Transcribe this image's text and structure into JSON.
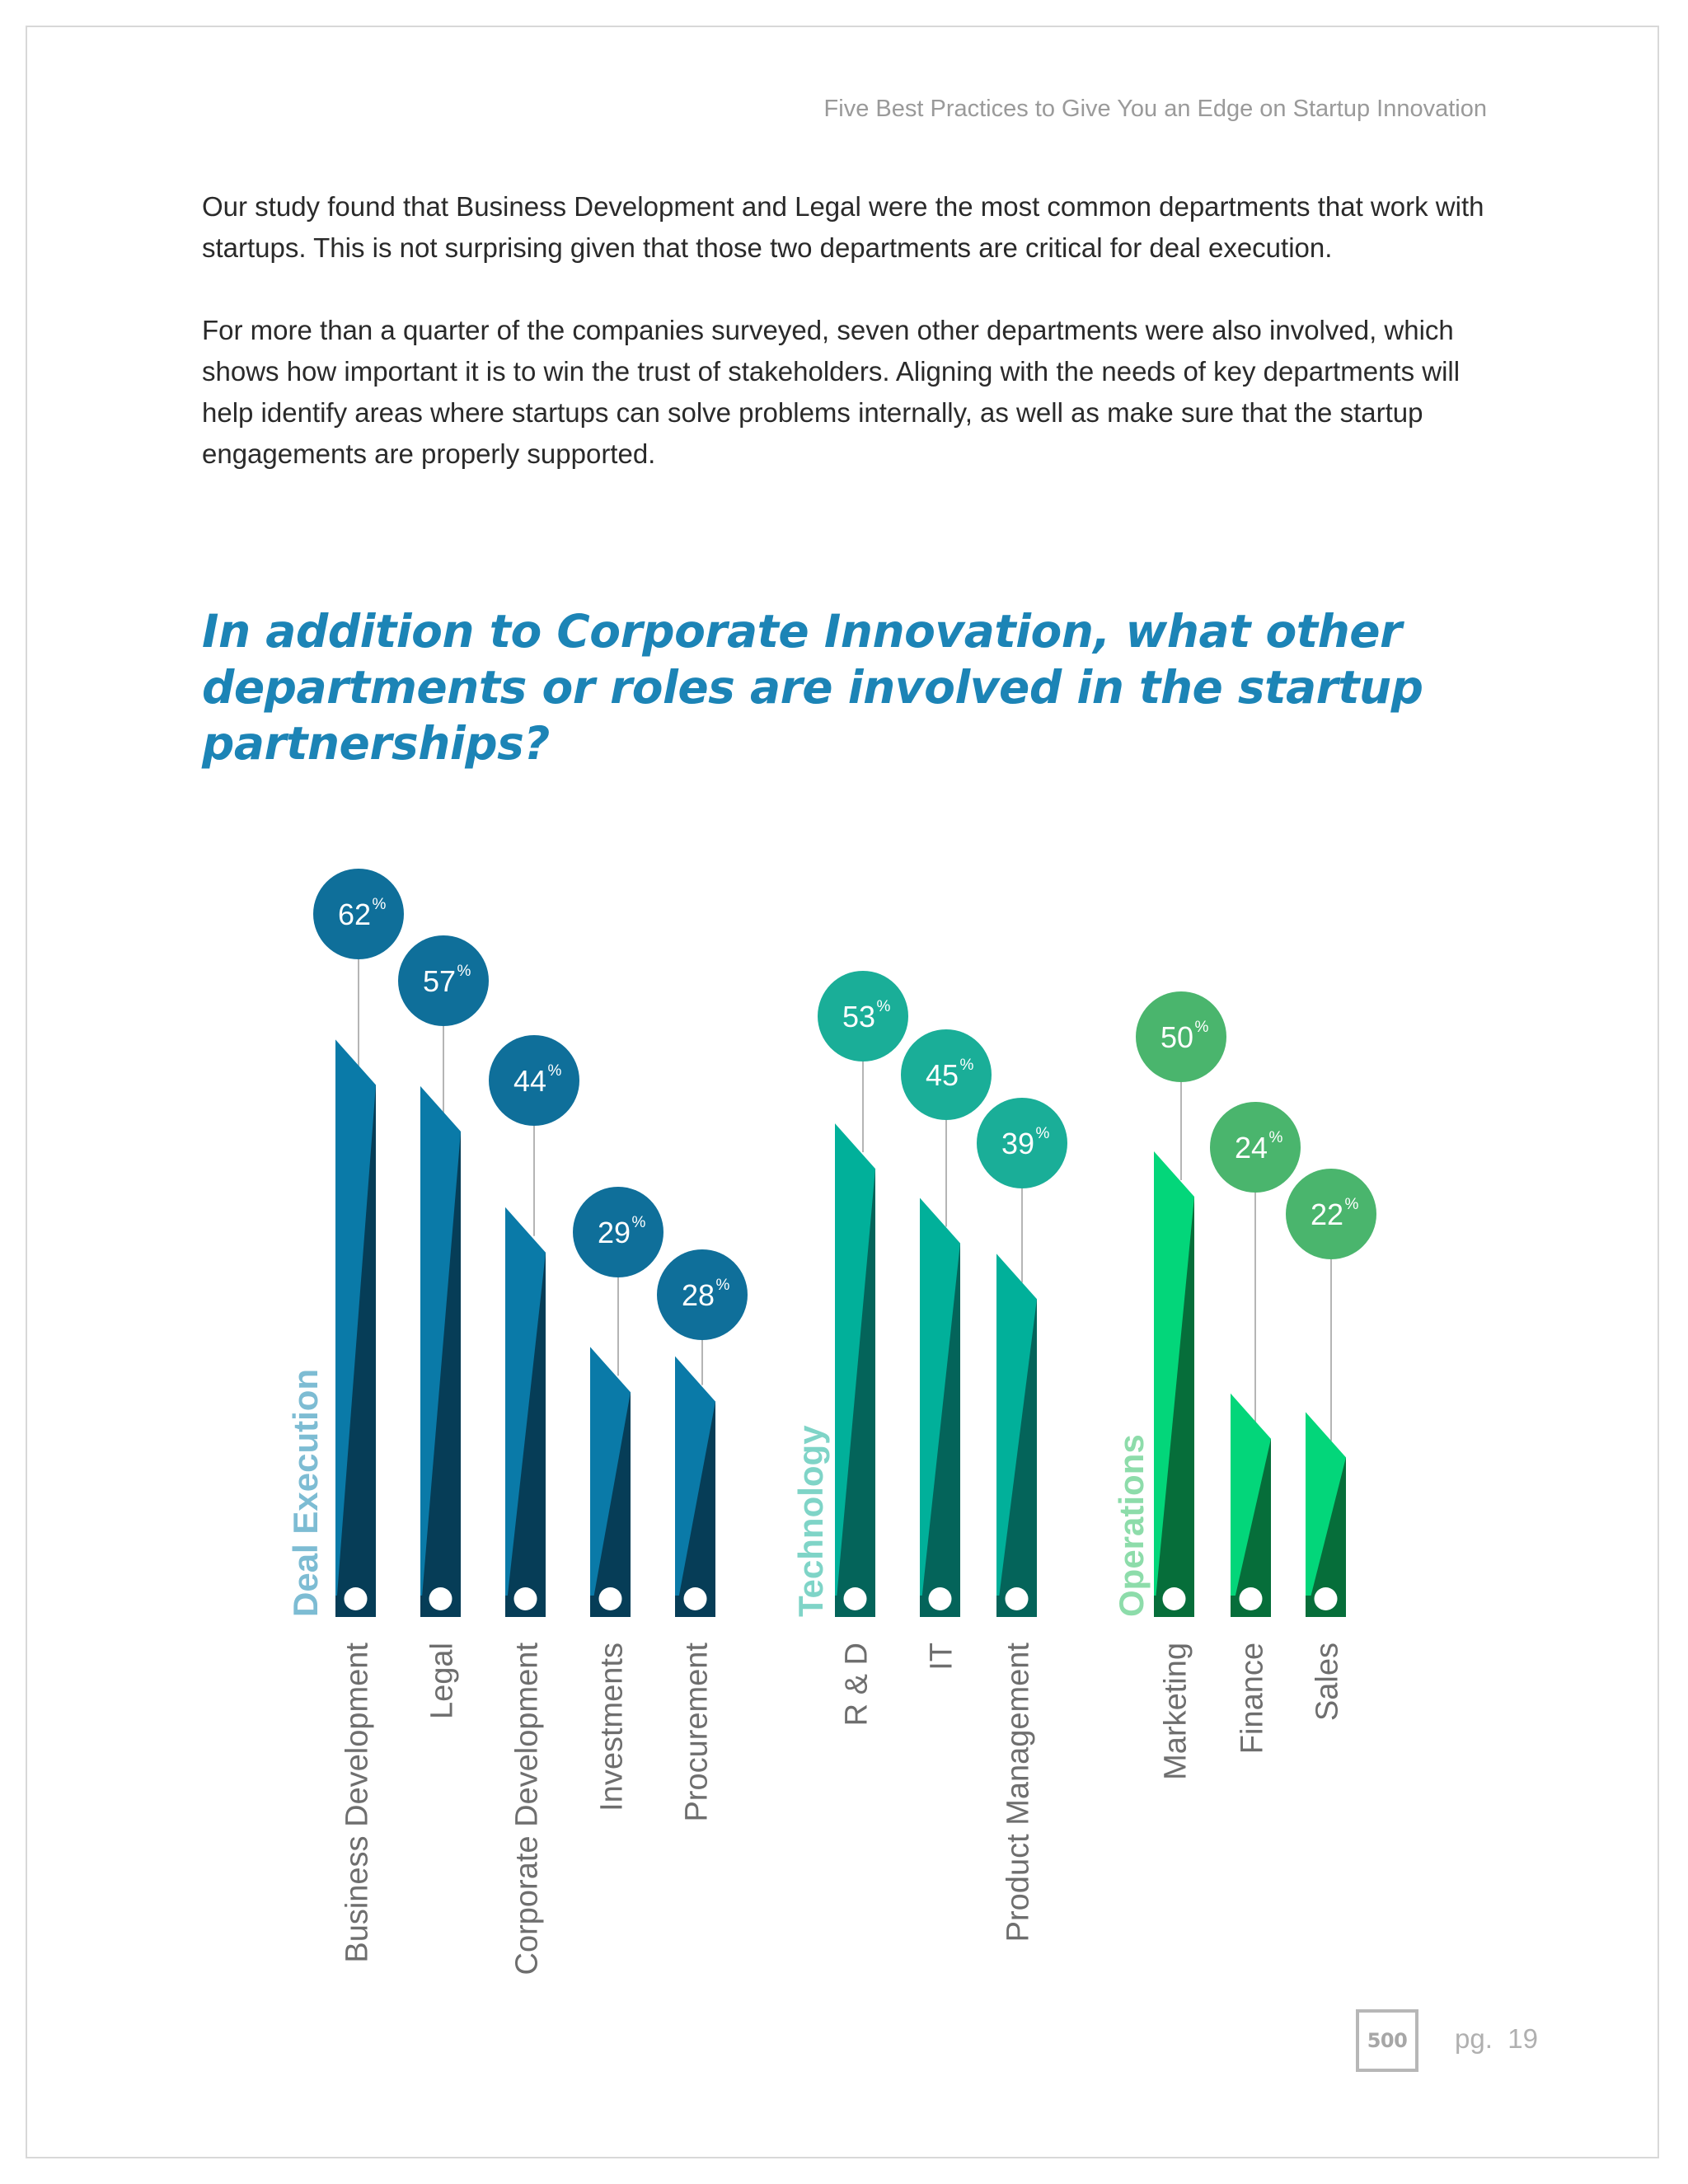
{
  "header": {
    "running_title": "Five Best Practices to Give You an Edge on Startup Innovation"
  },
  "body": {
    "paragraph_1": "Our study found that Business Development and Legal were the most common departments that work with startups. This is not surprising given that those two departments are critical for deal execution.",
    "paragraph_2": "For more than a quarter of the companies surveyed, seven other departments were also involved, which shows how important it is to win the trust of stakeholders. Aligning with the needs of key departments will help identify areas where startups can solve problems internally, as well as make sure that the startup engagements are properly supported."
  },
  "chart_heading": "In addition to Corporate Innovation, what other departments or roles are involved in the startup partnerships?",
  "chart_data": {
    "type": "bar",
    "value_unit": "%",
    "groups": [
      {
        "name": "Deal Execution",
        "colors": {
          "bar": "#0a7aa8",
          "bar_dark": "#063d57",
          "bubble": "#0f6f9a",
          "label": "#7dbcd3"
        },
        "categories": [
          "Business Development",
          "Legal",
          "Corporate Development",
          "Investments",
          "Procurement"
        ],
        "values": [
          62,
          57,
          44,
          29,
          28
        ]
      },
      {
        "name": "Technology",
        "colors": {
          "bar": "#01b09a",
          "bar_dark": "#04645a",
          "bubble": "#1aae98",
          "label": "#7fd4c7"
        },
        "categories": [
          "R & D",
          "IT",
          "Product Management"
        ],
        "values": [
          53,
          45,
          39
        ]
      },
      {
        "name": "Operations",
        "colors": {
          "bar": "#03d67a",
          "bar_dark": "#066e3a",
          "bubble": "#4ab56d",
          "label": "#8ddcaa"
        },
        "categories": [
          "Marketing",
          "Finance",
          "Sales"
        ],
        "values": [
          50,
          24,
          22
        ]
      }
    ]
  },
  "footer": {
    "logo_text": "500",
    "page_label": "pg.",
    "page_number": "19"
  }
}
